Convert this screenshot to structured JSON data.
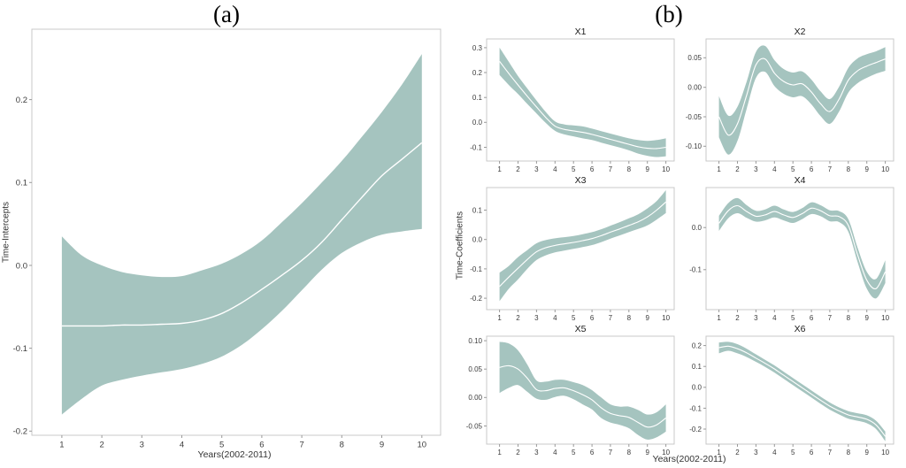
{
  "figure": {
    "panel_a_label": "(a)",
    "panel_b_label": "(b)",
    "a_ylabel": "Time-Intercepts",
    "b_ylabel": "Time-Coefficients",
    "xlabel": "Years(2002-2011)",
    "band_color": "#a5c4bf",
    "mean_line_color": "#ffffff",
    "axis_border_color": "#c9c9c9",
    "tick_color": "#999999",
    "tick_label_color": "#3b3b3b",
    "title_color": "#1a1a1a"
  },
  "chart_data": [
    {
      "type": "area",
      "title": "",
      "ylabel": "Time-Intercepts",
      "xlabel": "Years(2002-2011)",
      "x": [
        1,
        1.5,
        2,
        2.5,
        3,
        3.5,
        4,
        4.5,
        5,
        5.5,
        6,
        6.5,
        7,
        7.5,
        8,
        8.5,
        9,
        9.5,
        10
      ],
      "series": [
        {
          "name": "mean",
          "values": [
            -0.073,
            -0.073,
            -0.073,
            -0.072,
            -0.072,
            -0.071,
            -0.07,
            -0.066,
            -0.058,
            -0.045,
            -0.029,
            -0.012,
            0.006,
            0.028,
            0.055,
            0.082,
            0.108,
            0.128,
            0.148
          ]
        },
        {
          "name": "upper_ci",
          "values": [
            0.035,
            0.012,
            0.0,
            -0.008,
            -0.012,
            -0.014,
            -0.013,
            -0.006,
            0.002,
            0.014,
            0.03,
            0.052,
            0.075,
            0.1,
            0.126,
            0.155,
            0.185,
            0.218,
            0.255
          ]
        },
        {
          "name": "lower_ci",
          "values": [
            -0.18,
            -0.161,
            -0.145,
            -0.138,
            -0.133,
            -0.129,
            -0.125,
            -0.119,
            -0.11,
            -0.096,
            -0.077,
            -0.055,
            -0.03,
            -0.005,
            0.015,
            0.028,
            0.037,
            0.041,
            0.044
          ]
        }
      ],
      "xticks": [
        1,
        2,
        3,
        4,
        5,
        6,
        7,
        8,
        9,
        10
      ],
      "yticks": [
        0.2,
        0.1,
        0,
        -0.1,
        -0.2
      ],
      "ytick_labels": [
        "0.2",
        "0.1",
        "0.0",
        "-0.1",
        "-0.2"
      ],
      "ylim": [
        -0.205,
        0.285
      ],
      "xlim": [
        0.25,
        10.47
      ],
      "grid": false,
      "legend": "none"
    },
    {
      "type": "area",
      "title": "X1",
      "x": [
        1,
        1.5,
        2,
        2.5,
        3,
        3.5,
        4,
        4.5,
        5,
        5.5,
        6,
        6.5,
        7,
        7.5,
        8,
        8.5,
        9,
        9.5,
        10
      ],
      "series": [
        {
          "name": "mean",
          "values": [
            0.245,
            0.196,
            0.15,
            0.105,
            0.062,
            0.02,
            -0.015,
            -0.028,
            -0.034,
            -0.04,
            -0.048,
            -0.058,
            -0.068,
            -0.078,
            -0.088,
            -0.098,
            -0.104,
            -0.105,
            -0.1
          ]
        },
        {
          "name": "upper_ci",
          "values": [
            0.3,
            0.243,
            0.186,
            0.136,
            0.088,
            0.042,
            0.004,
            -0.008,
            -0.012,
            -0.016,
            -0.025,
            -0.035,
            -0.045,
            -0.055,
            -0.064,
            -0.071,
            -0.074,
            -0.071,
            -0.064
          ]
        },
        {
          "name": "lower_ci",
          "values": [
            0.19,
            0.15,
            0.114,
            0.074,
            0.036,
            -0.002,
            -0.034,
            -0.048,
            -0.056,
            -0.064,
            -0.071,
            -0.081,
            -0.091,
            -0.101,
            -0.112,
            -0.125,
            -0.134,
            -0.139,
            -0.136
          ]
        }
      ],
      "xticks": [
        1,
        2,
        3,
        4,
        5,
        6,
        7,
        8,
        9,
        10
      ],
      "yticks": [
        0.3,
        0.2,
        0.1,
        0,
        -0.1
      ],
      "ytick_labels": [
        "0.3",
        "0.2",
        "0.1",
        "0.0",
        "-0.1"
      ],
      "ylim": [
        -0.155,
        0.335
      ],
      "xlim": [
        0.3,
        10.45
      ],
      "grid": false,
      "legend": "none"
    },
    {
      "type": "area",
      "title": "X2",
      "x": [
        1,
        1.5,
        2,
        2.5,
        3,
        3.5,
        4,
        4.5,
        5,
        5.5,
        6,
        6.5,
        7,
        7.5,
        8,
        8.5,
        9,
        9.5,
        10
      ],
      "series": [
        {
          "name": "mean",
          "values": [
            -0.05,
            -0.081,
            -0.062,
            -0.013,
            0.038,
            0.048,
            0.024,
            0.01,
            0.004,
            0.006,
            -0.008,
            -0.028,
            -0.041,
            -0.02,
            0.012,
            0.028,
            0.036,
            0.042,
            0.048
          ]
        },
        {
          "name": "upper_ci",
          "values": [
            -0.015,
            -0.048,
            -0.033,
            0.01,
            0.06,
            0.07,
            0.046,
            0.031,
            0.025,
            0.027,
            0.013,
            -0.007,
            -0.02,
            0.001,
            0.033,
            0.049,
            0.056,
            0.061,
            0.068
          ]
        },
        {
          "name": "lower_ci",
          "values": [
            -0.085,
            -0.114,
            -0.091,
            -0.036,
            0.016,
            0.026,
            0.002,
            -0.011,
            -0.017,
            -0.015,
            -0.029,
            -0.049,
            -0.062,
            -0.041,
            -0.009,
            0.007,
            0.016,
            0.023,
            0.028
          ]
        }
      ],
      "xticks": [
        1,
        2,
        3,
        4,
        5,
        6,
        7,
        8,
        9,
        10
      ],
      "yticks": [
        0.05,
        0,
        -0.05,
        -0.1
      ],
      "ytick_labels": [
        "0.05",
        "0.00",
        "-0.05",
        "-0.10"
      ],
      "ylim": [
        -0.125,
        0.082
      ],
      "xlim": [
        0.3,
        10.45
      ],
      "grid": false,
      "legend": "none"
    },
    {
      "type": "area",
      "title": "X3",
      "x": [
        1,
        1.5,
        2,
        2.5,
        3,
        3.5,
        4,
        4.5,
        5,
        5.5,
        6,
        6.5,
        7,
        7.5,
        8,
        8.5,
        9,
        9.5,
        10
      ],
      "series": [
        {
          "name": "mean",
          "values": [
            -0.16,
            -0.128,
            -0.098,
            -0.068,
            -0.042,
            -0.028,
            -0.02,
            -0.015,
            -0.01,
            -0.004,
            0.003,
            0.013,
            0.025,
            0.036,
            0.048,
            0.06,
            0.077,
            0.1,
            0.128
          ]
        },
        {
          "name": "upper_ci",
          "values": [
            -0.113,
            -0.09,
            -0.06,
            -0.036,
            -0.013,
            -0.002,
            0.004,
            0.008,
            0.012,
            0.018,
            0.025,
            0.035,
            0.047,
            0.059,
            0.072,
            0.086,
            0.106,
            0.131,
            0.168
          ]
        },
        {
          "name": "lower_ci",
          "values": [
            -0.21,
            -0.168,
            -0.136,
            -0.1,
            -0.07,
            -0.054,
            -0.044,
            -0.038,
            -0.032,
            -0.026,
            -0.019,
            -0.009,
            0.003,
            0.014,
            0.025,
            0.036,
            0.048,
            0.068,
            0.09
          ]
        }
      ],
      "xticks": [
        1,
        2,
        3,
        4,
        5,
        6,
        7,
        8,
        9,
        10
      ],
      "yticks": [
        0.1,
        0,
        -0.1,
        -0.2
      ],
      "ytick_labels": [
        "0.1",
        "0.0",
        "-0.1",
        "-0.2"
      ],
      "ylim": [
        -0.239,
        0.177
      ],
      "xlim": [
        0.3,
        10.45
      ],
      "grid": false,
      "legend": "none"
    },
    {
      "type": "area",
      "title": "X4",
      "x": [
        1,
        1.5,
        2,
        2.5,
        3,
        3.5,
        4,
        4.5,
        5,
        5.5,
        6,
        6.5,
        7,
        7.5,
        8,
        8.5,
        9,
        9.5,
        10
      ],
      "series": [
        {
          "name": "mean",
          "values": [
            0.01,
            0.04,
            0.052,
            0.038,
            0.027,
            0.03,
            0.038,
            0.03,
            0.024,
            0.033,
            0.046,
            0.04,
            0.028,
            0.026,
            0.005,
            -0.065,
            -0.125,
            -0.145,
            -0.105
          ]
        },
        {
          "name": "upper_ci",
          "values": [
            0.028,
            0.058,
            0.07,
            0.053,
            0.04,
            0.043,
            0.052,
            0.043,
            0.037,
            0.046,
            0.06,
            0.053,
            0.041,
            0.039,
            0.02,
            -0.048,
            -0.105,
            -0.122,
            -0.078
          ]
        },
        {
          "name": "lower_ci",
          "values": [
            -0.008,
            0.022,
            0.034,
            0.023,
            0.014,
            0.017,
            0.024,
            0.017,
            0.011,
            0.02,
            0.032,
            0.027,
            0.015,
            0.013,
            -0.01,
            -0.082,
            -0.145,
            -0.168,
            -0.132
          ]
        }
      ],
      "xticks": [
        1,
        2,
        3,
        4,
        5,
        6,
        7,
        8,
        9,
        10
      ],
      "yticks": [
        0,
        -0.1
      ],
      "ytick_labels": [
        "0.0",
        "-0.1"
      ],
      "ylim": [
        -0.195,
        0.095
      ],
      "xlim": [
        0.3,
        10.45
      ],
      "grid": false,
      "legend": "none"
    },
    {
      "type": "area",
      "title": "X5",
      "x": [
        1,
        1.5,
        2,
        2.5,
        3,
        3.5,
        4,
        4.5,
        5,
        5.5,
        6,
        6.5,
        7,
        7.5,
        8,
        8.5,
        9,
        9.5,
        10
      ],
      "series": [
        {
          "name": "mean",
          "values": [
            0.053,
            0.056,
            0.05,
            0.034,
            0.014,
            0.012,
            0.016,
            0.017,
            0.012,
            0.005,
            -0.004,
            -0.018,
            -0.028,
            -0.032,
            -0.035,
            -0.044,
            -0.052,
            -0.048,
            -0.036
          ]
        },
        {
          "name": "upper_ci",
          "values": [
            0.098,
            0.095,
            0.083,
            0.058,
            0.03,
            0.028,
            0.031,
            0.031,
            0.027,
            0.022,
            0.013,
            0.0,
            -0.012,
            -0.016,
            -0.016,
            -0.022,
            -0.03,
            -0.026,
            -0.012
          ]
        },
        {
          "name": "lower_ci",
          "values": [
            0.008,
            0.017,
            0.022,
            0.01,
            -0.002,
            -0.004,
            0.001,
            0.003,
            -0.003,
            -0.012,
            -0.021,
            -0.036,
            -0.044,
            -0.048,
            -0.054,
            -0.066,
            -0.074,
            -0.07,
            -0.06
          ]
        }
      ],
      "xticks": [
        1,
        2,
        3,
        4,
        5,
        6,
        7,
        8,
        9,
        10
      ],
      "yticks": [
        0.1,
        0.05,
        0,
        -0.05
      ],
      "ytick_labels": [
        "0.10",
        "0.05",
        "0.00",
        "-0.05"
      ],
      "ylim": [
        -0.082,
        0.108
      ],
      "xlim": [
        0.3,
        10.45
      ],
      "grid": false,
      "legend": "none"
    },
    {
      "type": "area",
      "title": "X6",
      "x": [
        1,
        1.5,
        2,
        2.5,
        3,
        3.5,
        4,
        4.5,
        5,
        5.5,
        6,
        6.5,
        7,
        7.5,
        8,
        8.5,
        9,
        9.5,
        10
      ],
      "series": [
        {
          "name": "mean",
          "values": [
            0.19,
            0.197,
            0.185,
            0.165,
            0.14,
            0.115,
            0.088,
            0.058,
            0.028,
            -0.002,
            -0.032,
            -0.062,
            -0.09,
            -0.113,
            -0.132,
            -0.142,
            -0.153,
            -0.18,
            -0.235
          ]
        },
        {
          "name": "upper_ci",
          "values": [
            0.215,
            0.218,
            0.207,
            0.185,
            0.158,
            0.132,
            0.105,
            0.075,
            0.045,
            0.015,
            -0.015,
            -0.045,
            -0.073,
            -0.096,
            -0.114,
            -0.124,
            -0.134,
            -0.16,
            -0.212
          ]
        },
        {
          "name": "lower_ci",
          "values": [
            0.163,
            0.175,
            0.163,
            0.145,
            0.122,
            0.098,
            0.071,
            0.041,
            0.011,
            -0.019,
            -0.049,
            -0.079,
            -0.107,
            -0.13,
            -0.15,
            -0.16,
            -0.172,
            -0.2,
            -0.258
          ]
        }
      ],
      "xticks": [
        1,
        2,
        3,
        4,
        5,
        6,
        7,
        8,
        9,
        10
      ],
      "yticks": [
        0.2,
        0.1,
        0,
        -0.1,
        -0.2
      ],
      "ytick_labels": [
        "0.2",
        "0.1",
        "0.0",
        "-0.1",
        "-0.2"
      ],
      "ylim": [
        -0.272,
        0.245
      ],
      "xlim": [
        0.3,
        10.45
      ],
      "grid": false,
      "legend": "none"
    }
  ]
}
